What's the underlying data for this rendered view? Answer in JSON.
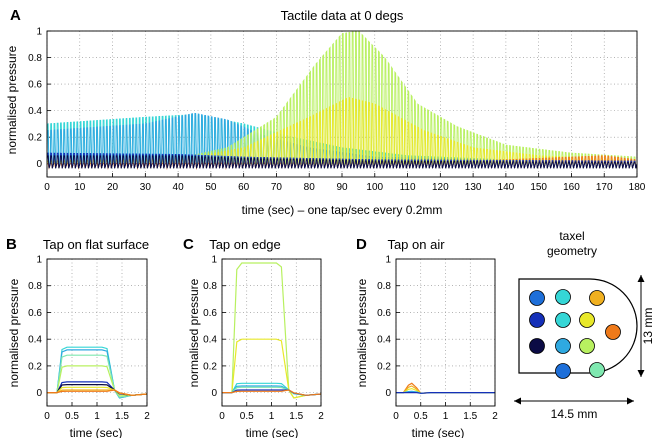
{
  "figure": {
    "colors": {
      "series_palette": [
        "#0b0b45",
        "#1530b8",
        "#1e6fd9",
        "#2fa9e0",
        "#35d6d6",
        "#7fe8b0",
        "#b8f060",
        "#e8e82a",
        "#f0b020",
        "#ef7a1a"
      ]
    }
  },
  "chart_data": [
    {
      "panel": "A",
      "type": "line",
      "title": "Tactile data at 0 degs",
      "xlabel": "time (sec) – one tap/sec every 0.2mm",
      "ylabel": "normalised pressure",
      "xlim": [
        0,
        180
      ],
      "ylim": [
        -0.1,
        1.0
      ],
      "xticks": [
        "0",
        "10",
        "20",
        "30",
        "40",
        "50",
        "60",
        "70",
        "80",
        "90",
        "100",
        "110",
        "120",
        "130",
        "140",
        "150",
        "160",
        "170",
        "180"
      ],
      "yticks": [
        "0",
        "0.2",
        "0.4",
        "0.6",
        "0.8",
        "1"
      ],
      "grid": true,
      "series": [
        {
          "color": "#35d6d6",
          "envelope": [
            [
              0,
              0.3
            ],
            [
              30,
              0.35
            ],
            [
              45,
              0.37
            ],
            [
              60,
              0.3
            ],
            [
              75,
              0.2
            ],
            [
              90,
              0.12
            ],
            [
              110,
              0.06
            ],
            [
              140,
              0.03
            ],
            [
              180,
              0.02
            ]
          ]
        },
        {
          "color": "#2fa9e0",
          "envelope": [
            [
              0,
              0.25
            ],
            [
              30,
              0.3
            ],
            [
              45,
              0.38
            ],
            [
              55,
              0.33
            ],
            [
              65,
              0.22
            ],
            [
              80,
              0.12
            ],
            [
              100,
              0.05
            ],
            [
              140,
              0.03
            ],
            [
              180,
              0.02
            ]
          ]
        },
        {
          "color": "#b8f060",
          "envelope": [
            [
              0,
              0.02
            ],
            [
              40,
              0.04
            ],
            [
              55,
              0.12
            ],
            [
              70,
              0.35
            ],
            [
              82,
              0.75
            ],
            [
              90,
              0.98
            ],
            [
              95,
              1.0
            ],
            [
              103,
              0.8
            ],
            [
              113,
              0.45
            ],
            [
              125,
              0.28
            ],
            [
              140,
              0.14
            ],
            [
              160,
              0.08
            ],
            [
              180,
              0.05
            ]
          ]
        },
        {
          "color": "#e8e82a",
          "envelope": [
            [
              0,
              0.02
            ],
            [
              40,
              0.03
            ],
            [
              60,
              0.12
            ],
            [
              80,
              0.35
            ],
            [
              92,
              0.5
            ],
            [
              100,
              0.45
            ],
            [
              115,
              0.25
            ],
            [
              130,
              0.12
            ],
            [
              150,
              0.06
            ],
            [
              180,
              0.03
            ]
          ]
        },
        {
          "color": "#ef7a1a",
          "envelope": [
            [
              0,
              0.0
            ],
            [
              120,
              0.01
            ],
            [
              140,
              0.03
            ],
            [
              160,
              0.05
            ],
            [
              170,
              0.06
            ],
            [
              180,
              0.03
            ]
          ]
        },
        {
          "color": "#1530b8",
          "envelope": [
            [
              0,
              0.08
            ],
            [
              40,
              0.07
            ],
            [
              60,
              0.05
            ],
            [
              100,
              0.03
            ],
            [
              180,
              0.02
            ]
          ]
        },
        {
          "color": "#0b0b45",
          "envelope": [
            [
              0,
              0.06
            ],
            [
              40,
              0.06
            ],
            [
              60,
              0.04
            ],
            [
              100,
              0.02
            ],
            [
              180,
              0.01
            ]
          ]
        }
      ]
    },
    {
      "panel": "B",
      "type": "line",
      "title": "Tap on flat surface",
      "xlabel": "time (sec)",
      "ylabel": "normalised pressure",
      "xlim": [
        0,
        2
      ],
      "ylim": [
        -0.1,
        1.0
      ],
      "xticks": [
        "0",
        "0.5",
        "1",
        "1.5",
        "2"
      ],
      "yticks": [
        "0",
        "0.2",
        "0.4",
        "0.6",
        "0.8",
        "1"
      ],
      "grid": true,
      "series": [
        {
          "color": "#35d6d6",
          "plateau": 0.34
        },
        {
          "color": "#2fa9e0",
          "plateau": 0.32
        },
        {
          "color": "#7fe8b0",
          "plateau": 0.28
        },
        {
          "color": "#b8f060",
          "plateau": 0.2
        },
        {
          "color": "#1530b8",
          "plateau": 0.08
        },
        {
          "color": "#0b0b45",
          "plateau": 0.06
        },
        {
          "color": "#e8e82a",
          "plateau": 0.04
        },
        {
          "color": "#f0b020",
          "plateau": 0.02
        },
        {
          "color": "#ef7a1a",
          "plateau": 0.01
        }
      ]
    },
    {
      "panel": "C",
      "type": "line",
      "title": "Tap on edge",
      "xlabel": "time (sec)",
      "ylabel": "normalised pressure",
      "xlim": [
        0,
        2
      ],
      "ylim": [
        -0.1,
        1.0
      ],
      "xticks": [
        "0",
        "0.5",
        "1",
        "1.5",
        "2"
      ],
      "yticks": [
        "0",
        "0.2",
        "0.4",
        "0.6",
        "0.8",
        "1"
      ],
      "grid": true,
      "series": [
        {
          "color": "#b8f060",
          "plateau": 0.97
        },
        {
          "color": "#e8e82a",
          "plateau": 0.4
        },
        {
          "color": "#35d6d6",
          "plateau": 0.07
        },
        {
          "color": "#2fa9e0",
          "plateau": 0.05
        },
        {
          "color": "#7fe8b0",
          "plateau": 0.04
        },
        {
          "color": "#1530b8",
          "plateau": 0.02
        },
        {
          "color": "#ef7a1a",
          "plateau": 0.01
        }
      ]
    },
    {
      "panel": "D",
      "type": "line",
      "title": "Tap on air",
      "xlabel": "time (sec)",
      "ylabel": "normalised pressure",
      "xlim": [
        0,
        2
      ],
      "ylim": [
        -0.1,
        1.0
      ],
      "xticks": [
        "0",
        "0.5",
        "1",
        "1.5",
        "2"
      ],
      "yticks": [
        "0",
        "0.2",
        "0.4",
        "0.6",
        "0.8",
        "1"
      ],
      "grid": true,
      "series": [
        {
          "color": "#ef7a1a",
          "bump": 0.07
        },
        {
          "color": "#f0b020",
          "bump": 0.05
        },
        {
          "color": "#e8e82a",
          "bump": 0.03
        },
        {
          "color": "#2fa9e0",
          "bump": 0.01
        },
        {
          "color": "#1530b8",
          "bump": 0.0
        }
      ]
    }
  ],
  "geometry": {
    "title_line1": "taxel",
    "title_line2": "geometry",
    "width_label": "14.5 mm",
    "height_label": "13 mm",
    "taxels": [
      {
        "color": "#1e6fd9"
      },
      {
        "color": "#35d6d6"
      },
      {
        "color": "#f0b020"
      },
      {
        "color": "#1530b8"
      },
      {
        "color": "#35d6d6"
      },
      {
        "color": "#e8e82a"
      },
      {
        "color": "#ef7a1a"
      },
      {
        "color": "#0b0b45"
      },
      {
        "color": "#2fa9e0"
      },
      {
        "color": "#b8f060"
      },
      {
        "color": "#1e6fd9"
      },
      {
        "color": "#7fe8b0"
      }
    ]
  }
}
